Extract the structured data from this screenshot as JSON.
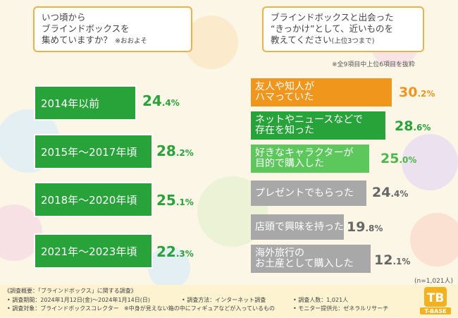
{
  "question_left": {
    "line1": "いつ頃から",
    "line2": "ブラインドボックスを",
    "line3": "集めていますか？",
    "note": "※おおよそ"
  },
  "question_right": {
    "line1": "ブラインドボックスと出会った",
    "line2": "“きっかけ”として、近いものを",
    "line3": "教えてください",
    "note": "(上位3つまで)"
  },
  "right_note": "※全9項目中上位6項目を抜粋",
  "sample_note": "(n=1,021人)",
  "chart_data": [
    {
      "type": "bar",
      "orientation": "horizontal",
      "title": "いつ頃からブラインドボックスを集めていますか？",
      "unit": "%",
      "categories": [
        "2014年以前",
        "2015年～2017年頃",
        "2018年～2020年頃",
        "2021年～2023年頃"
      ],
      "values": [
        24.4,
        28.2,
        25.1,
        22.3
      ],
      "color": "#27a33a"
    },
    {
      "type": "bar",
      "orientation": "horizontal",
      "title": "ブラインドボックスと出会った“きっかけ”",
      "unit": "%",
      "categories": [
        [
          "友人や知人が",
          "ハマっていた"
        ],
        [
          "ネットやニュースなどで",
          "存在を知った"
        ],
        [
          "好きなキャラクターが",
          "目的で購入した"
        ],
        [
          "プレゼントでもらった"
        ],
        [
          "店頭で興味を持った"
        ],
        [
          "海外旅行の",
          "お土産として購入した"
        ]
      ],
      "values": [
        30.2,
        28.6,
        25.0,
        24.4,
        19.8,
        12.1
      ],
      "colors": [
        "#f0961c",
        "#27a33a",
        "#5cc85c",
        "#a8a8a8",
        "#a8a8a8",
        "#a8a8a8"
      ],
      "value_colors": [
        "#f0961c",
        "#27a33a",
        "#4cb84c",
        "#666666",
        "#666666",
        "#666666"
      ]
    }
  ],
  "footer": {
    "title": "《調査概要：「ブラインドボックス」に関する調査》",
    "period": "• 調査期間：2024年1月12日(金)～2024年1月14日(日)",
    "method": "• 調査方法：インターネット調査",
    "count": "• 調査人数：1,021人",
    "target": "• 調査対象：ブラインドボックスコレクター",
    "target_note": "※中身が見えない箱の中にフィギュアなどが入っているもの",
    "provider": "• モニター提供元：ゼネラルリサーチ",
    "logo_text": "T-BASE",
    "logo_mark": "TB"
  }
}
